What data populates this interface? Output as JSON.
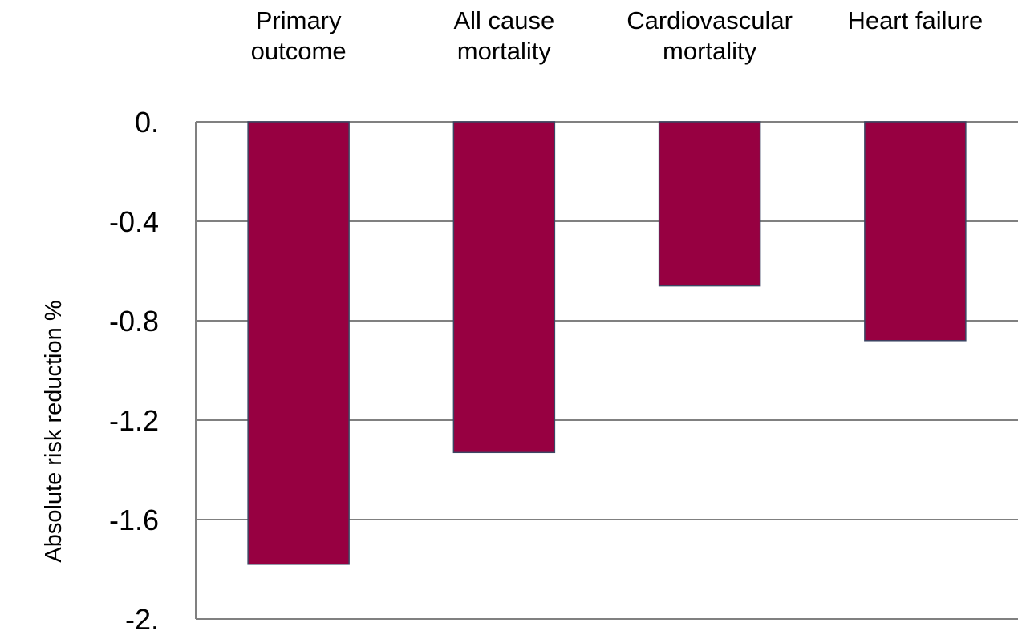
{
  "chart_data": {
    "type": "bar",
    "categories": [
      [
        "Primary",
        "outcome"
      ],
      [
        "All cause",
        "mortality"
      ],
      [
        "Cardiovascular",
        "mortality"
      ],
      [
        "Heart failure"
      ]
    ],
    "values": [
      -1.78,
      -1.33,
      -0.66,
      -0.88
    ],
    "title": "",
    "xlabel": "",
    "ylabel": "Absolute risk reduction %",
    "ylim": [
      -2,
      0
    ],
    "yticks": [
      0,
      -0.4,
      -0.8,
      -1.2,
      -1.6,
      -2
    ],
    "ytick_labels": [
      "0.",
      "-0.4",
      "-0.8",
      "-1.2",
      "-1.6",
      "-2."
    ],
    "category_axis_position": "top",
    "grid": true,
    "legend": "none",
    "colors": {
      "bar": "#970041",
      "bar_edge": "#3c4663",
      "grid": "#808080"
    }
  }
}
